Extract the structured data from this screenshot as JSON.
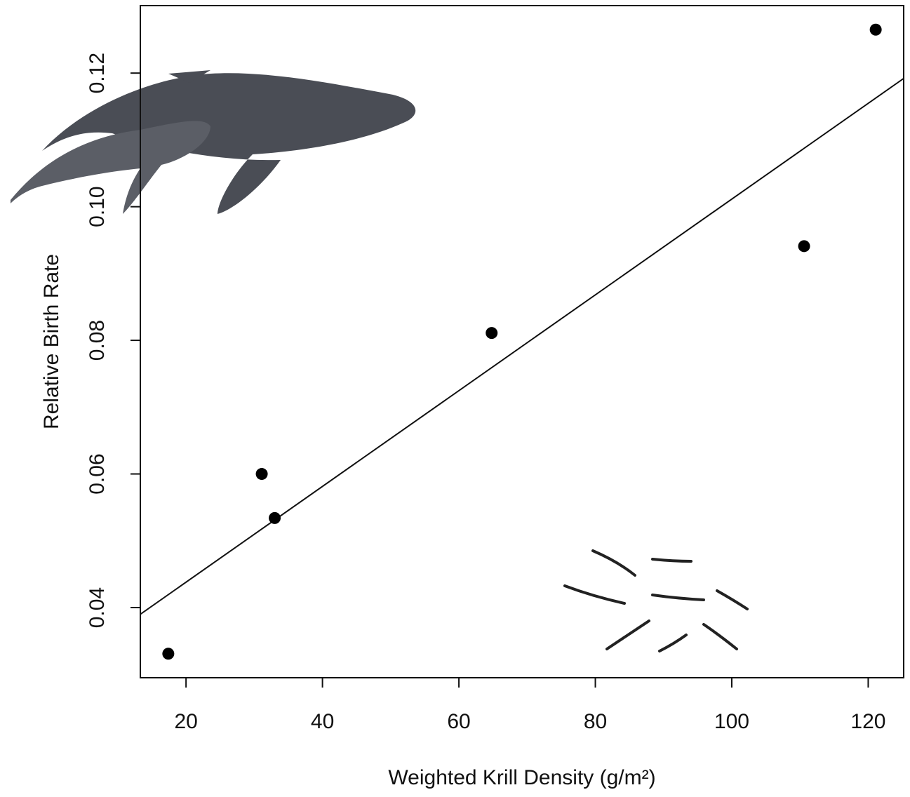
{
  "chart_data": {
    "type": "scatter",
    "x_label": "Weighted Krill Density (g/m²)",
    "y_label": "Relative Birth Rate",
    "x": [
      17.4,
      31.1,
      33.0,
      64.8,
      110.6,
      121.1
    ],
    "values": [
      0.0331,
      0.06,
      0.0534,
      0.0811,
      0.0941,
      0.1265
    ],
    "color": "#000000",
    "fit": {
      "x": [
        13.3,
        125.2
      ],
      "values": [
        0.039,
        0.1192
      ]
    },
    "xlim": [
      13.3,
      125.2
    ],
    "ylim": [
      0.0295,
      0.1301
    ],
    "xticks": [
      20,
      40,
      60,
      80,
      100,
      120
    ],
    "yticks": [
      0.04,
      0.06,
      0.08,
      {
        "value": 0.1,
        "label": "0.10"
      },
      0.12
    ],
    "grid": false
  }
}
